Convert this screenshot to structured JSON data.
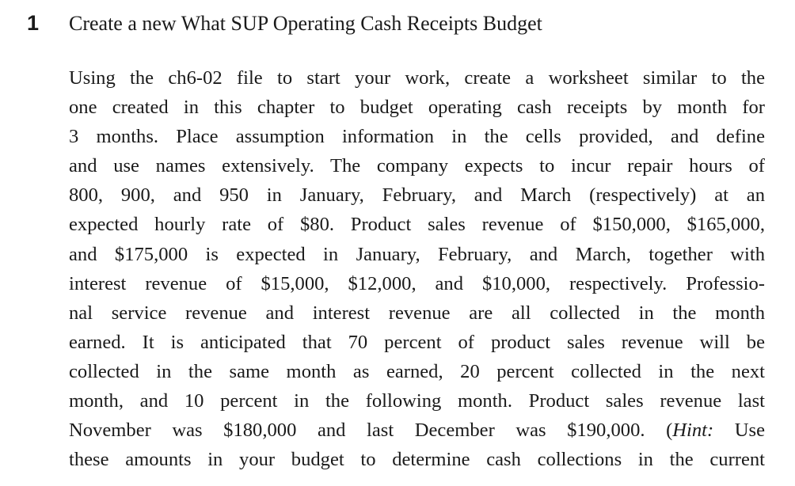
{
  "problem": {
    "number": "1",
    "title": "Create a new What SUP Operating Cash Receipts Budget"
  },
  "body_lines": [
    "Using the ch6-02 file to start your work, create a worksheet similar to the",
    "one created in this chapter to budget operating cash receipts by month for",
    "3 months. Place assumption information in the cells provided, and define",
    "and use names extensively. The company expects to incur repair hours of",
    "800, 900, and 950 in January, February, and March (respectively) at an",
    "expected hourly rate of $80. Product sales revenue of $150,000, $165,000,",
    "and $175,000 is expected in January, February, and March, together with",
    "interest revenue of $15,000, $12,000, and $10,000, respectively. Professio-",
    "nal service revenue and interest revenue are all collected in the month",
    "earned. It is anticipated that 70 percent of product sales revenue will be",
    "collected in the same month as earned, 20 percent collected in the next",
    "month, and 10 percent in the following month. Product sales revenue last"
  ],
  "hint_line": {
    "before": "November was $180,000 and last December was $190,000. (",
    "hint_label": "Hint:",
    "after": " Use"
  },
  "last_line": "these amounts in your budget to determine cash collections in the current"
}
